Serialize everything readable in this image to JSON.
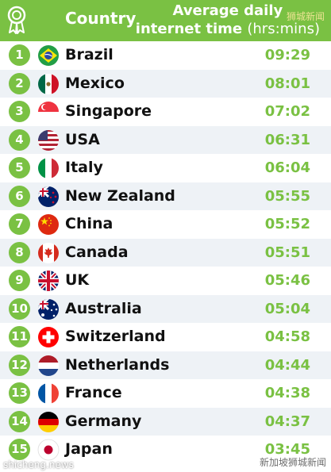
{
  "chart_data": {
    "type": "table",
    "header": {
      "country": "Country",
      "time_line1": "Average daily",
      "time_line2": "internet time",
      "time_units": "(hrs:mins)"
    },
    "rows": [
      {
        "rank": "1",
        "country": "Brazil",
        "time": "09:29",
        "flag": "brazil-flag-icon"
      },
      {
        "rank": "2",
        "country": "Mexico",
        "time": "08:01",
        "flag": "mexico-flag-icon"
      },
      {
        "rank": "3",
        "country": "Singapore",
        "time": "07:02",
        "flag": "singapore-flag-icon"
      },
      {
        "rank": "4",
        "country": "USA",
        "time": "06:31",
        "flag": "usa-flag-icon"
      },
      {
        "rank": "5",
        "country": "Italy",
        "time": "06:04",
        "flag": "italy-flag-icon"
      },
      {
        "rank": "6",
        "country": "New Zealand",
        "time": "05:55",
        "flag": "new-zealand-flag-icon"
      },
      {
        "rank": "7",
        "country": "China",
        "time": "05:52",
        "flag": "china-flag-icon"
      },
      {
        "rank": "8",
        "country": "Canada",
        "time": "05:51",
        "flag": "canada-flag-icon"
      },
      {
        "rank": "9",
        "country": "UK",
        "time": "05:46",
        "flag": "uk-flag-icon"
      },
      {
        "rank": "10",
        "country": "Australia",
        "time": "05:04",
        "flag": "australia-flag-icon"
      },
      {
        "rank": "11",
        "country": "Switzerland",
        "time": "04:58",
        "flag": "switzerland-flag-icon"
      },
      {
        "rank": "12",
        "country": "Netherlands",
        "time": "04:44",
        "flag": "netherlands-flag-icon"
      },
      {
        "rank": "13",
        "country": "France",
        "time": "04:38",
        "flag": "france-flag-icon"
      },
      {
        "rank": "14",
        "country": "Germany",
        "time": "04:37",
        "flag": "germany-flag-icon"
      },
      {
        "rank": "15",
        "country": "Japan",
        "time": "03:45",
        "flag": "japan-flag-icon"
      }
    ]
  },
  "icons": {
    "header": "award-ribbon-icon"
  },
  "colors": {
    "accent": "#7ac143",
    "stripe": "#eef2f6",
    "text": "#111111"
  },
  "watermarks": {
    "top": "狮城新闻",
    "bottom_left": "shicheng.news",
    "bottom_right": "新加坡狮城新闻"
  }
}
